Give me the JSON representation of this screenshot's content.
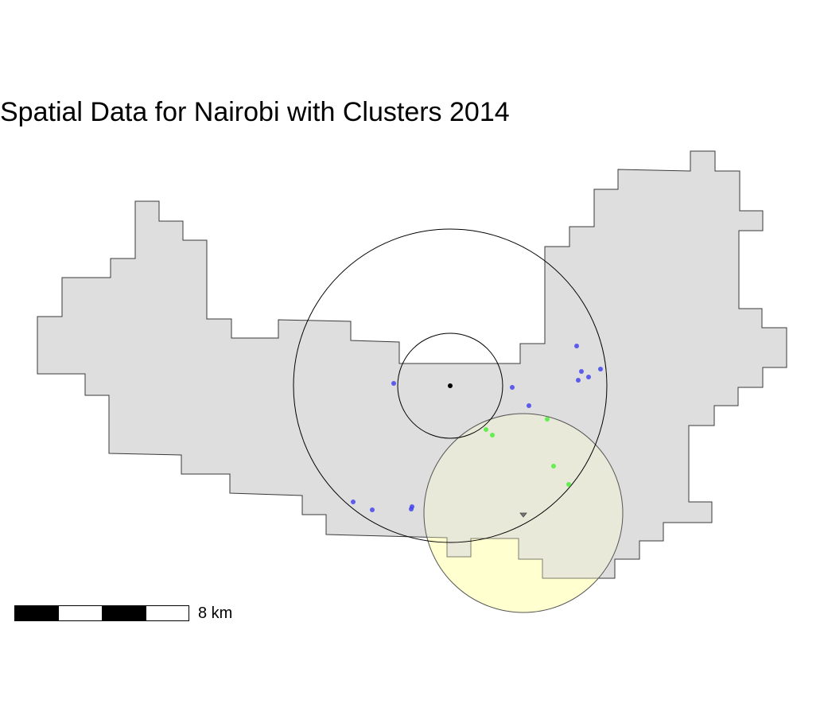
{
  "title": "Spatial Data for Nairobi with Clusters 2014",
  "colors": {
    "region_fill": "#dedede",
    "region_stroke": "#3a3a3a",
    "cluster_blue": "#4444ee",
    "cluster_green": "#55ee44",
    "highlight_circle_fill": "#ffffd0",
    "ring_stroke": "#000000",
    "center_point": "#000000",
    "scalebar_black": "#000000",
    "scalebar_white": "#ffffff"
  },
  "legend": {
    "scale_label": "8 km"
  },
  "layers": {
    "region": {
      "name": "nairobi-boundary",
      "icon": "polygon-shape"
    },
    "rings": {
      "name": "concentric-rings",
      "icon": "circle-outline"
    },
    "highlight": {
      "name": "highlight-circle",
      "icon": "filled-circle"
    },
    "points_blue": {
      "name": "blue-cluster-points",
      "icon": "dot"
    },
    "points_green": {
      "name": "green-cluster-points",
      "icon": "dot"
    },
    "center": {
      "name": "center-point",
      "icon": "dot"
    },
    "marker": {
      "name": "small-marker",
      "icon": "triangle-marker"
    }
  }
}
